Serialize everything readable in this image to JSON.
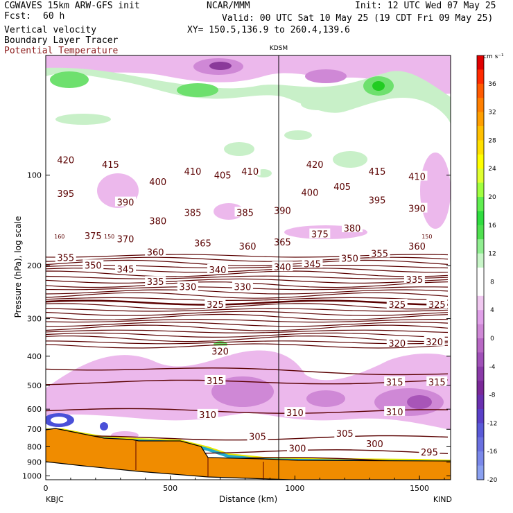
{
  "header": {
    "model": "CGWAVES 15km ARW-GFS init",
    "fcst_label": "Fcst:",
    "fcst_value": "60 h",
    "field1": "Vertical velocity",
    "field2": "Boundary Layer Tracer",
    "field3": "Potential Temperature",
    "center": "NCAR/MMM",
    "init": "Init: 12 UTC Wed 07 May 25",
    "valid": "Valid: 00 UTC Sat 10 May 25 (19 CDT Fri 09 May 25)",
    "xy": "XY= 150.5,136.9 to 260.4,139.6"
  },
  "colors": {
    "theta": "#5a0000",
    "terrain": "#f08c00",
    "pos_light": "#c8f0c8",
    "pos_mid": "#6ee06e",
    "pos_strong": "#22cc22",
    "neg_light": "#ecb8ec",
    "neg_mid": "#cf88d6",
    "neg_strong": "#a855b8"
  },
  "chart_data": {
    "type": "heatmap",
    "xlabel": "Distance (km)",
    "ylabel": "Pressure (hPa), log scale",
    "x_ticks": [
      "0",
      "500",
      "1000",
      "1500"
    ],
    "y_ticks": [
      "100",
      "200",
      "300",
      "400",
      "500",
      "600",
      "700",
      "800",
      "900",
      "1000"
    ],
    "left_station": "KBJC",
    "right_station": "KIND",
    "mid_station": "KDSM",
    "mid_station_km": 935,
    "xlim": [
      0,
      1625
    ],
    "ylim_hpa": [
      1030,
      40
    ],
    "colorbar": {
      "unit": "cm s⁻¹",
      "labels": [
        "36",
        "32",
        "28",
        "24",
        "20",
        "16",
        "12",
        "8",
        "4",
        "0",
        "-4",
        "-8",
        "-12",
        "-16",
        "-20"
      ]
    },
    "theta_labels": [
      {
        "text": "420",
        "km": 80,
        "p": 89
      },
      {
        "text": "415",
        "km": 260,
        "p": 92
      },
      {
        "text": "410",
        "km": 590,
        "p": 97
      },
      {
        "text": "405",
        "km": 710,
        "p": 100
      },
      {
        "text": "410",
        "km": 820,
        "p": 97
      },
      {
        "text": "420",
        "km": 1080,
        "p": 92
      },
      {
        "text": "415",
        "km": 1330,
        "p": 97
      },
      {
        "text": "410",
        "km": 1490,
        "p": 101
      },
      {
        "text": "395",
        "km": 80,
        "p": 115
      },
      {
        "text": "400",
        "km": 450,
        "p": 105
      },
      {
        "text": "390",
        "km": 320,
        "p": 123
      },
      {
        "text": "400",
        "km": 1060,
        "p": 114
      },
      {
        "text": "405",
        "km": 1190,
        "p": 109
      },
      {
        "text": "395",
        "km": 1330,
        "p": 121
      },
      {
        "text": "390",
        "km": 1490,
        "p": 129
      },
      {
        "text": "380",
        "km": 450,
        "p": 142
      },
      {
        "text": "385",
        "km": 590,
        "p": 133
      },
      {
        "text": "385",
        "km": 800,
        "p": 133
      },
      {
        "text": "390",
        "km": 950,
        "p": 131
      },
      {
        "text": "375",
        "km": 190,
        "p": 159
      },
      {
        "text": "370",
        "km": 320,
        "p": 163
      },
      {
        "text": "365",
        "km": 630,
        "p": 168
      },
      {
        "text": "360",
        "km": 810,
        "p": 172
      },
      {
        "text": "365",
        "km": 950,
        "p": 167
      },
      {
        "text": "375",
        "km": 1100,
        "p": 157
      },
      {
        "text": "380",
        "km": 1230,
        "p": 150
      },
      {
        "text": "360",
        "km": 1490,
        "p": 172
      },
      {
        "text": "355",
        "km": 1340,
        "p": 182
      },
      {
        "text": "350",
        "km": 1220,
        "p": 189
      },
      {
        "text": "345",
        "km": 1070,
        "p": 197
      },
      {
        "text": "340",
        "km": 950,
        "p": 202
      },
      {
        "text": "340",
        "km": 690,
        "p": 206
      },
      {
        "text": "355",
        "km": 80,
        "p": 188
      },
      {
        "text": "350",
        "km": 190,
        "p": 199
      },
      {
        "text": "345",
        "km": 320,
        "p": 205
      },
      {
        "text": "360",
        "km": 440,
        "p": 180
      },
      {
        "text": "335",
        "km": 440,
        "p": 226
      },
      {
        "text": "330",
        "km": 570,
        "p": 235
      },
      {
        "text": "330",
        "km": 790,
        "p": 235
      },
      {
        "text": "335",
        "km": 1480,
        "p": 222
      },
      {
        "text": "325",
        "km": 680,
        "p": 269
      },
      {
        "text": "325",
        "km": 1410,
        "p": 269
      },
      {
        "text": "325",
        "km": 1570,
        "p": 269
      },
      {
        "text": "320",
        "km": 700,
        "p": 385
      },
      {
        "text": "320",
        "km": 1410,
        "p": 362
      },
      {
        "text": "320",
        "km": 1560,
        "p": 358
      },
      {
        "text": "315",
        "km": 680,
        "p": 482
      },
      {
        "text": "315",
        "km": 1400,
        "p": 487
      },
      {
        "text": "315",
        "km": 1570,
        "p": 487
      },
      {
        "text": "310",
        "km": 650,
        "p": 625
      },
      {
        "text": "310",
        "km": 1000,
        "p": 616
      },
      {
        "text": "310",
        "km": 1400,
        "p": 612
      },
      {
        "text": "305",
        "km": 850,
        "p": 740
      },
      {
        "text": "305",
        "km": 1200,
        "p": 722
      },
      {
        "text": "300",
        "km": 1010,
        "p": 810
      },
      {
        "text": "300",
        "km": 1320,
        "p": 781
      },
      {
        "text": "295",
        "km": 1540,
        "p": 833
      }
    ],
    "small_labels": [
      {
        "text": "160",
        "km": 55,
        "p": 160
      },
      {
        "text": "150",
        "km": 255,
        "p": 160
      },
      {
        "text": "150",
        "km": 1530,
        "p": 160
      }
    ]
  }
}
